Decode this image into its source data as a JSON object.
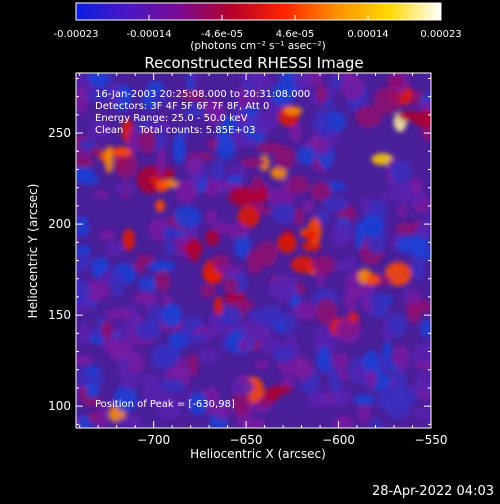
{
  "colorbar": {
    "tick_labels": [
      "-0.00023",
      "-0.00014",
      "-4.6e-05",
      "4.6e-05",
      "0.00014",
      "0.00023"
    ],
    "unit_label": "(photons cm⁻² s⁻¹ asec⁻²)",
    "range": [
      -0.00023,
      0.00023
    ],
    "colors": [
      "#0b1de0",
      "#4b17c5",
      "#7a0b90",
      "#b7002a",
      "#ff2500",
      "#ff8f00",
      "#ffd900",
      "#ffffff"
    ]
  },
  "plot": {
    "title": "Reconstructed RHESSI Image",
    "xlabel": "Heliocentric X (arcsec)",
    "ylabel": "Heliocentric Y (arcsec)",
    "x_ticks": [
      "−700",
      "−650",
      "−600",
      "−550"
    ],
    "y_ticks": [
      "100",
      "150",
      "200",
      "250"
    ],
    "x_tick_values": [
      -700,
      -650,
      -600,
      -550
    ],
    "y_tick_values": [
      100,
      150,
      200,
      250
    ],
    "xlim": [
      -742,
      -550
    ],
    "ylim": [
      88,
      283
    ]
  },
  "annotations": {
    "line1": "16-Jan-2003 20:25:08.000 to 20:31:08.000",
    "line2": "Detectors: 3F 4F 5F 6F 7F 8F, Att 0",
    "line3": "Energy Range: 25.0 - 50.0 keV",
    "line4": "Clean     Total counts: 5.85E+03",
    "peak": "Position of Peak = [-630,98]"
  },
  "footer": {
    "timestamp": "28-Apr-2022 04:03"
  }
}
